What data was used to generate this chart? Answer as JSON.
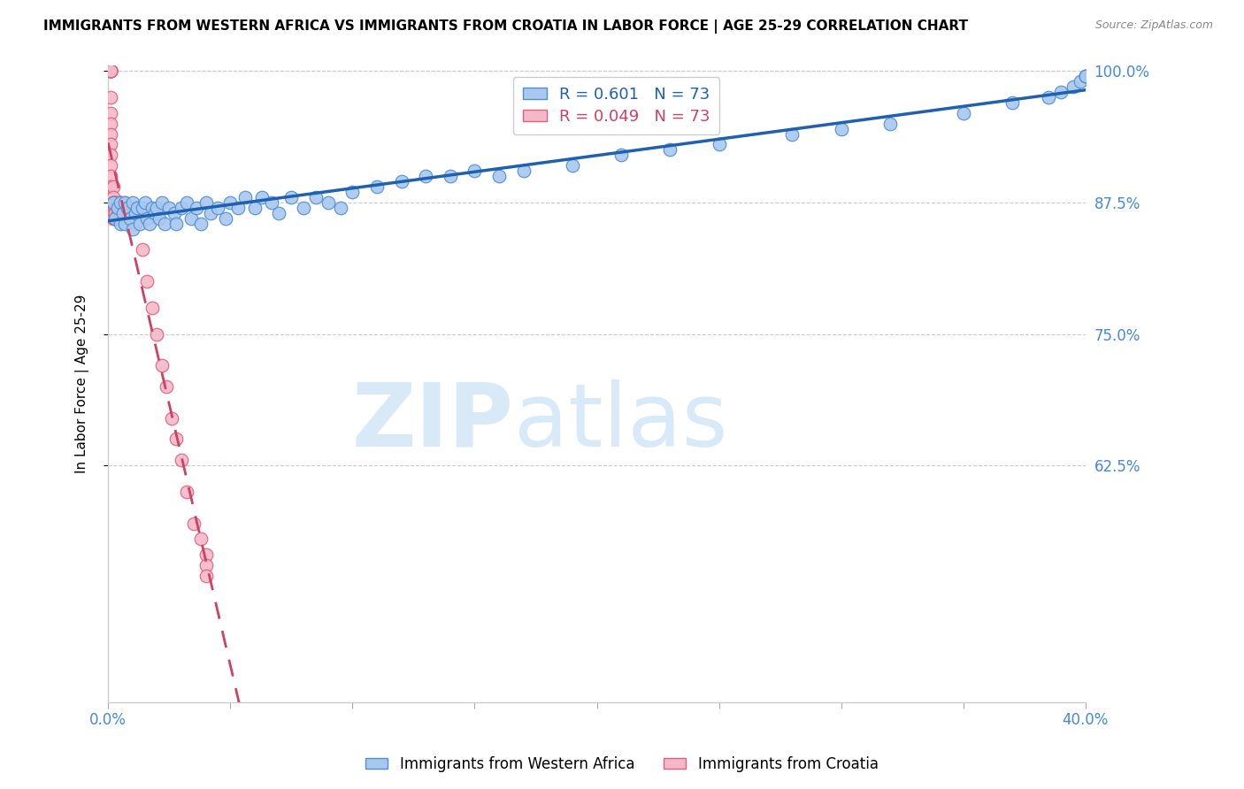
{
  "title": "IMMIGRANTS FROM WESTERN AFRICA VS IMMIGRANTS FROM CROATIA IN LABOR FORCE | AGE 25-29 CORRELATION CHART",
  "source": "Source: ZipAtlas.com",
  "ylabel": "In Labor Force | Age 25-29",
  "R_blue": 0.601,
  "N_blue": 73,
  "R_pink": 0.049,
  "N_pink": 73,
  "legend_blue": "Immigrants from Western Africa",
  "legend_pink": "Immigrants from Croatia",
  "xlim": [
    0.0,
    0.4
  ],
  "ylim": [
    0.4,
    1.005
  ],
  "yticks": [
    0.625,
    0.75,
    0.875,
    1.0
  ],
  "ytick_labels": [
    "62.5%",
    "75.0%",
    "87.5%",
    "100.0%"
  ],
  "xticks": [
    0.0,
    0.05,
    0.1,
    0.15,
    0.2,
    0.25,
    0.3,
    0.35,
    0.4
  ],
  "xtick_labels": [
    "0.0%",
    "",
    "",
    "",
    "",
    "",
    "",
    "",
    "40.0%"
  ],
  "blue_color": "#a8c8f0",
  "pink_color": "#f5b8c8",
  "blue_edge_color": "#5090d0",
  "pink_edge_color": "#e06080",
  "blue_line_color": "#2060b0",
  "pink_line_color": "#d04060",
  "watermark_zip": "ZIP",
  "watermark_atlas": "atlas",
  "watermark_color": "#d8eaf8",
  "blue_x": [
    0.002,
    0.003,
    0.004,
    0.005,
    0.005,
    0.006,
    0.007,
    0.007,
    0.008,
    0.009,
    0.01,
    0.01,
    0.011,
    0.012,
    0.013,
    0.014,
    0.015,
    0.016,
    0.017,
    0.018,
    0.019,
    0.02,
    0.021,
    0.022,
    0.023,
    0.025,
    0.027,
    0.028,
    0.03,
    0.032,
    0.034,
    0.036,
    0.038,
    0.04,
    0.042,
    0.045,
    0.048,
    0.05,
    0.053,
    0.056,
    0.06,
    0.063,
    0.067,
    0.07,
    0.075,
    0.08,
    0.085,
    0.09,
    0.095,
    0.1,
    0.11,
    0.12,
    0.13,
    0.14,
    0.15,
    0.16,
    0.17,
    0.19,
    0.21,
    0.23,
    0.25,
    0.28,
    0.3,
    0.32,
    0.35,
    0.37,
    0.385,
    0.39,
    0.395,
    0.398,
    0.4,
    0.4,
    0.4
  ],
  "blue_y": [
    0.875,
    0.86,
    0.87,
    0.855,
    0.875,
    0.865,
    0.875,
    0.855,
    0.87,
    0.86,
    0.875,
    0.85,
    0.865,
    0.87,
    0.855,
    0.87,
    0.875,
    0.86,
    0.855,
    0.87,
    0.865,
    0.87,
    0.86,
    0.875,
    0.855,
    0.87,
    0.865,
    0.855,
    0.87,
    0.875,
    0.86,
    0.87,
    0.855,
    0.875,
    0.865,
    0.87,
    0.86,
    0.875,
    0.87,
    0.88,
    0.87,
    0.88,
    0.875,
    0.865,
    0.88,
    0.87,
    0.88,
    0.875,
    0.87,
    0.885,
    0.89,
    0.895,
    0.9,
    0.9,
    0.905,
    0.9,
    0.905,
    0.91,
    0.92,
    0.925,
    0.93,
    0.94,
    0.945,
    0.95,
    0.96,
    0.97,
    0.975,
    0.98,
    0.985,
    0.99,
    0.995,
    0.995,
    0.995
  ],
  "pink_x": [
    0.001,
    0.001,
    0.001,
    0.001,
    0.001,
    0.001,
    0.001,
    0.001,
    0.001,
    0.001,
    0.001,
    0.001,
    0.001,
    0.001,
    0.001,
    0.001,
    0.001,
    0.002,
    0.002,
    0.002,
    0.002,
    0.002,
    0.002,
    0.002,
    0.002,
    0.002,
    0.002,
    0.002,
    0.003,
    0.003,
    0.003,
    0.003,
    0.003,
    0.003,
    0.003,
    0.003,
    0.004,
    0.004,
    0.004,
    0.004,
    0.004,
    0.004,
    0.005,
    0.005,
    0.005,
    0.005,
    0.005,
    0.005,
    0.006,
    0.006,
    0.006,
    0.007,
    0.007,
    0.008,
    0.009,
    0.01,
    0.011,
    0.012,
    0.014,
    0.016,
    0.018,
    0.02,
    0.022,
    0.024,
    0.026,
    0.028,
    0.03,
    0.032,
    0.035,
    0.038,
    0.04,
    0.04,
    0.04
  ],
  "pink_y": [
    1.0,
    1.0,
    1.0,
    1.0,
    1.0,
    1.0,
    1.0,
    1.0,
    0.975,
    0.96,
    0.95,
    0.94,
    0.93,
    0.92,
    0.91,
    0.9,
    0.89,
    0.89,
    0.88,
    0.875,
    0.87,
    0.865,
    0.86,
    0.87,
    0.875,
    0.865,
    0.875,
    0.86,
    0.875,
    0.87,
    0.865,
    0.875,
    0.86,
    0.875,
    0.87,
    0.865,
    0.87,
    0.875,
    0.865,
    0.87,
    0.86,
    0.87,
    0.875,
    0.87,
    0.865,
    0.86,
    0.875,
    0.87,
    0.87,
    0.865,
    0.86,
    0.87,
    0.875,
    0.86,
    0.865,
    0.87,
    0.855,
    0.87,
    0.83,
    0.8,
    0.775,
    0.75,
    0.72,
    0.7,
    0.67,
    0.65,
    0.63,
    0.6,
    0.57,
    0.555,
    0.54,
    0.53,
    0.52
  ]
}
